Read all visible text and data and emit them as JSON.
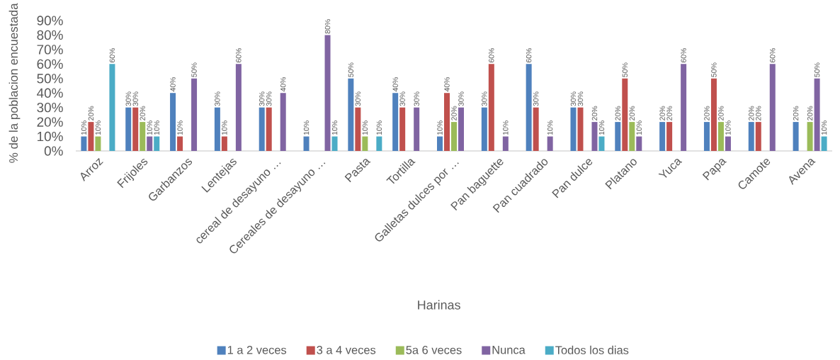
{
  "chart_data": {
    "type": "bar",
    "xlabel": "Harinas",
    "ylabel": "% de la poblacion encuestada",
    "categories": [
      "Arroz",
      "Frijoles",
      "Garbanzos",
      "Lentejas",
      "cereal de desayuno …",
      "Cereales de desayuno …",
      "Pasta",
      "Tortilla",
      "Galletas dulces por …",
      "Pan baguette",
      "Pan cuadrado",
      "Pan dulce",
      "Platano",
      "Yuca",
      "Papa",
      "Camote",
      "Avena"
    ],
    "ylim": [
      0,
      90
    ],
    "yticks": [
      {
        "value": 0,
        "label": "0%"
      },
      {
        "value": 10,
        "label": "10%"
      },
      {
        "value": 20,
        "label": "20%"
      },
      {
        "value": 30,
        "label": "30%"
      },
      {
        "value": 40,
        "label": "40%"
      },
      {
        "value": 50,
        "label": "50%"
      },
      {
        "value": 60,
        "label": "60%"
      },
      {
        "value": 70,
        "label": "70%"
      },
      {
        "value": 80,
        "label": "80%"
      },
      {
        "value": 90,
        "label": "90%"
      }
    ],
    "legend": "bottom",
    "series": [
      {
        "name": "1 a 2 veces",
        "color": "#4f81bd",
        "values": [
          10,
          30,
          40,
          30,
          30,
          10,
          50,
          40,
          10,
          30,
          60,
          30,
          20,
          20,
          20,
          20,
          20
        ],
        "value_labels": [
          "10%",
          "30%",
          "40%",
          "30%",
          "30%",
          "10%",
          "50%",
          "40%",
          "10%",
          "30%",
          "60%",
          "30%",
          "20%",
          "20%",
          "20%",
          "20%",
          "20%"
        ]
      },
      {
        "name": "3 a 4 veces",
        "color": "#c0504d",
        "values": [
          20,
          30,
          10,
          10,
          30,
          null,
          30,
          30,
          40,
          60,
          30,
          30,
          50,
          20,
          50,
          20,
          null
        ],
        "value_labels": [
          "20%",
          "30%",
          "10%",
          "10%",
          "30%",
          null,
          "30%",
          "30%",
          "40%",
          "60%",
          "30%",
          "30%",
          "50%",
          "20%",
          "50%",
          "20%",
          null
        ]
      },
      {
        "name": "5a 6 veces",
        "color": "#9bbb59",
        "values": [
          10,
          20,
          null,
          null,
          null,
          null,
          10,
          null,
          20,
          null,
          null,
          null,
          20,
          null,
          20,
          null,
          20
        ],
        "value_labels": [
          "10%",
          "20%",
          null,
          null,
          null,
          null,
          "10%",
          null,
          "20%",
          null,
          null,
          null,
          "20%",
          null,
          "20%",
          null,
          "20%"
        ]
      },
      {
        "name": "Nunca",
        "color": "#8064a2",
        "values": [
          null,
          10,
          50,
          60,
          40,
          80,
          null,
          30,
          30,
          10,
          10,
          20,
          10,
          60,
          10,
          60,
          50
        ],
        "value_labels": [
          null,
          "10%",
          "50%",
          "60%",
          "40%",
          "80%",
          null,
          "30%",
          "30%",
          "10%",
          "10%",
          "20%",
          "10%",
          "60%",
          "10%",
          "60%",
          "50%"
        ]
      },
      {
        "name": "Todos los dias",
        "color": "#4bacc6",
        "values": [
          60,
          10,
          null,
          null,
          null,
          10,
          10,
          null,
          null,
          null,
          null,
          10,
          null,
          null,
          null,
          null,
          10
        ],
        "value_labels": [
          "60%",
          "10%",
          null,
          null,
          null,
          "10%",
          "10%",
          null,
          null,
          null,
          null,
          "10%",
          null,
          null,
          null,
          null,
          "10%"
        ]
      }
    ]
  }
}
